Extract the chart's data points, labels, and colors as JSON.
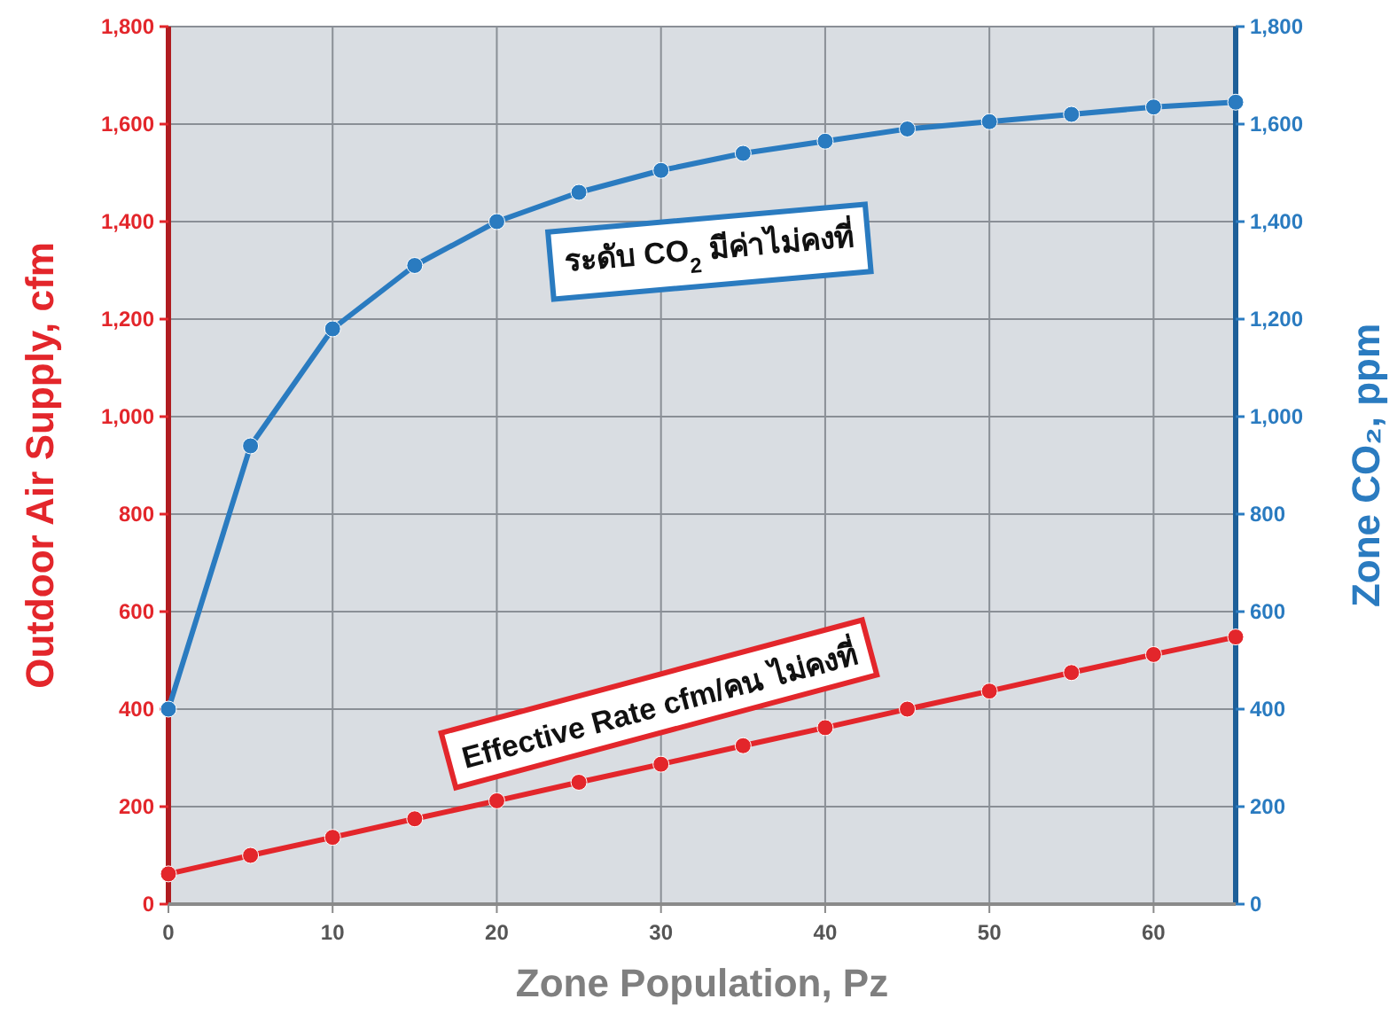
{
  "chart_data": {
    "type": "line",
    "xlabel": "Zone Population, Pz",
    "ylabel": "Outdoor Air Supply, cfm",
    "y2label": "Zone CO₂, ppm",
    "x": [
      0,
      5,
      10,
      15,
      20,
      25,
      30,
      35,
      40,
      45,
      50,
      55,
      60,
      65
    ],
    "series": [
      {
        "color": "#e3262b",
        "values": [
          62,
          100,
          137,
          175,
          212,
          250,
          287,
          325,
          362,
          400,
          437,
          475,
          512,
          548
        ]
      },
      {
        "color": "#2a7bc0",
        "axis": "y2",
        "values": [
          400,
          940,
          1180,
          1310,
          1400,
          1460,
          1505,
          1540,
          1565,
          1590,
          1605,
          1620,
          1635,
          1645
        ]
      }
    ],
    "xlim": [
      0,
      65
    ],
    "xticks": [
      0,
      10,
      20,
      30,
      40,
      50,
      60
    ],
    "ylim": [
      0,
      1800
    ],
    "yticks": [
      0,
      200,
      400,
      600,
      800,
      {
        "value": 1000,
        "label": "1,000"
      },
      {
        "value": 1200,
        "label": "1,200"
      },
      {
        "value": 1400,
        "label": "1,400"
      },
      {
        "value": 1600,
        "label": "1,600"
      },
      {
        "value": 1800,
        "label": "1,800"
      }
    ],
    "y2lim": [
      0,
      1800
    ],
    "y2ticks": [
      0,
      200,
      400,
      600,
      800,
      {
        "value": 1000,
        "label": "1,000"
      },
      {
        "value": 1200,
        "label": "1,200"
      },
      {
        "value": 1400,
        "label": "1,400"
      },
      {
        "value": 1600,
        "label": "1,600"
      },
      {
        "value": 1800,
        "label": "1,800"
      }
    ],
    "annotations": [
      "ระดับ CO$_{2}$ มีค่าไม่คงที่",
      "Effective Rate cfm/คน ไม่คงที่"
    ],
    "grid": true,
    "legend": false,
    "marker": "circle",
    "line_style": "solid"
  }
}
